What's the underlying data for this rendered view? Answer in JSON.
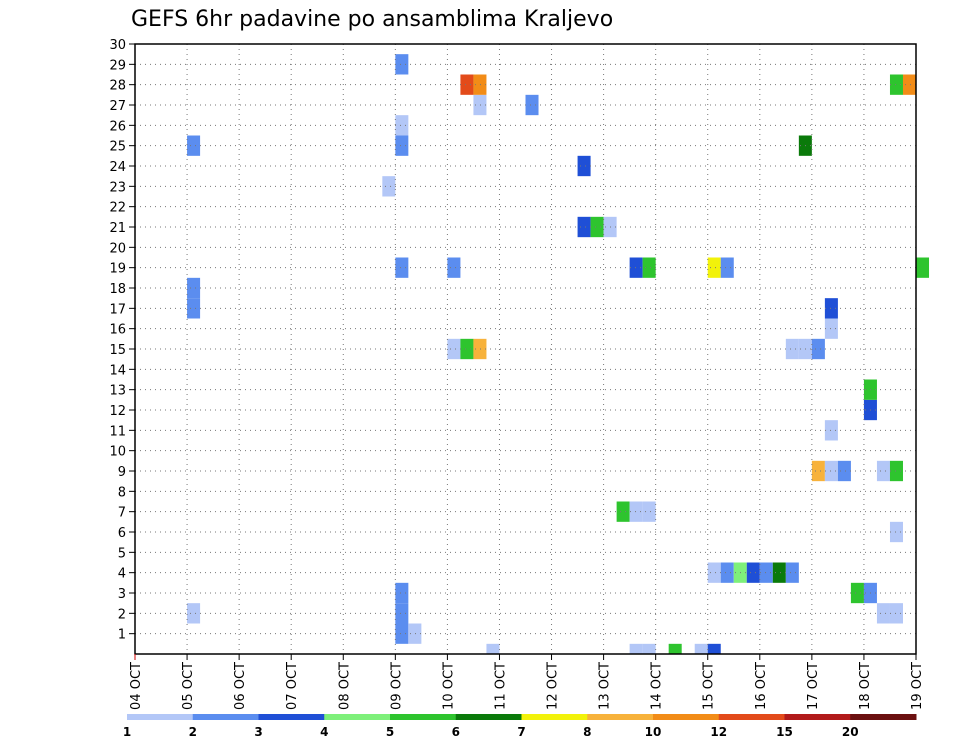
{
  "chart_data": {
    "type": "heatmap",
    "title": "GEFS 6hr padavine po ansamblima Kraljevo",
    "xlabel": "",
    "ylabel": "",
    "x_ticks": [
      "04 OCT",
      "05 OCT",
      "06 OCT",
      "07 OCT",
      "08 OCT",
      "09 OCT",
      "10 OCT",
      "11 OCT",
      "12 OCT",
      "13 OCT",
      "14 OCT",
      "15 OCT",
      "16 OCT",
      "17 OCT",
      "18 OCT",
      "19 OCT"
    ],
    "xlim_days": [
      0,
      15
    ],
    "y_ticks": [
      1,
      2,
      3,
      4,
      5,
      6,
      7,
      8,
      9,
      10,
      11,
      12,
      13,
      14,
      15,
      16,
      17,
      18,
      19,
      20,
      21,
      22,
      23,
      24,
      25,
      26,
      27,
      28,
      29,
      30
    ],
    "ylim": [
      0,
      30
    ],
    "grid": true,
    "cell_width_hours": 6,
    "colorbar": {
      "labels": [
        "1",
        "2",
        "3",
        "4",
        "5",
        "6",
        "7",
        "8",
        "10",
        "12",
        "15",
        "20"
      ],
      "colors": [
        "#b3c7f7",
        "#5b8def",
        "#1f4fd6",
        "#7ef07a",
        "#2ec42e",
        "#0a7a0a",
        "#f2f20a",
        "#f7b23b",
        "#f28c17",
        "#e34b1a",
        "#b21a1a",
        "#6b1010"
      ]
    },
    "cells": [
      {
        "member": 1,
        "day": 5.0,
        "mm": 2
      },
      {
        "member": 1,
        "day": 5.25,
        "mm": 1
      },
      {
        "member": 2,
        "day": 1.0,
        "mm": 1
      },
      {
        "member": 2,
        "day": 5.0,
        "mm": 2
      },
      {
        "member": 2,
        "day": 14.25,
        "mm": 1
      },
      {
        "member": 2,
        "day": 14.5,
        "mm": 1
      },
      {
        "member": 3,
        "day": 5.0,
        "mm": 2
      },
      {
        "member": 3,
        "day": 13.75,
        "mm": 5
      },
      {
        "member": 3,
        "day": 14.0,
        "mm": 2
      },
      {
        "member": 4,
        "day": 11.0,
        "mm": 1
      },
      {
        "member": 4,
        "day": 11.25,
        "mm": 2
      },
      {
        "member": 4,
        "day": 11.5,
        "mm": 4
      },
      {
        "member": 4,
        "day": 11.75,
        "mm": 3
      },
      {
        "member": 4,
        "day": 12.0,
        "mm": 2
      },
      {
        "member": 4,
        "day": 12.25,
        "mm": 6
      },
      {
        "member": 4,
        "day": 12.5,
        "mm": 2
      },
      {
        "member": 6,
        "day": 14.5,
        "mm": 1
      },
      {
        "member": 7,
        "day": 9.25,
        "mm": 5
      },
      {
        "member": 7,
        "day": 9.5,
        "mm": 1
      },
      {
        "member": 7,
        "day": 9.75,
        "mm": 1
      },
      {
        "member": 9,
        "day": 13.0,
        "mm": 8
      },
      {
        "member": 9,
        "day": 13.25,
        "mm": 1
      },
      {
        "member": 9,
        "day": 13.5,
        "mm": 2
      },
      {
        "member": 9,
        "day": 14.25,
        "mm": 1
      },
      {
        "member": 9,
        "day": 14.5,
        "mm": 5
      },
      {
        "member": 11,
        "day": 13.25,
        "mm": 1
      },
      {
        "member": 12,
        "day": 14.0,
        "mm": 3
      },
      {
        "member": 13,
        "day": 14.0,
        "mm": 5
      },
      {
        "member": 15,
        "day": 6.0,
        "mm": 1
      },
      {
        "member": 15,
        "day": 6.25,
        "mm": 5
      },
      {
        "member": 15,
        "day": 6.5,
        "mm": 8
      },
      {
        "member": 15,
        "day": 12.5,
        "mm": 1
      },
      {
        "member": 15,
        "day": 12.75,
        "mm": 1
      },
      {
        "member": 15,
        "day": 13.0,
        "mm": 2
      },
      {
        "member": 16,
        "day": 13.25,
        "mm": 1
      },
      {
        "member": 17,
        "day": 1.0,
        "mm": 2
      },
      {
        "member": 17,
        "day": 13.25,
        "mm": 3
      },
      {
        "member": 18,
        "day": 1.0,
        "mm": 2
      },
      {
        "member": 19,
        "day": 5.0,
        "mm": 2
      },
      {
        "member": 19,
        "day": 6.0,
        "mm": 2
      },
      {
        "member": 19,
        "day": 9.5,
        "mm": 3
      },
      {
        "member": 19,
        "day": 9.75,
        "mm": 5
      },
      {
        "member": 19,
        "day": 11.0,
        "mm": 7
      },
      {
        "member": 19,
        "day": 11.25,
        "mm": 2
      },
      {
        "member": 19,
        "day": 15.0,
        "mm": 5
      },
      {
        "member": 21,
        "day": 8.5,
        "mm": 3
      },
      {
        "member": 21,
        "day": 8.75,
        "mm": 5
      },
      {
        "member": 21,
        "day": 9.0,
        "mm": 1
      },
      {
        "member": 23,
        "day": 4.75,
        "mm": 1
      },
      {
        "member": 24,
        "day": 8.5,
        "mm": 3
      },
      {
        "member": 25,
        "day": 1.0,
        "mm": 2
      },
      {
        "member": 25,
        "day": 5.0,
        "mm": 2
      },
      {
        "member": 25,
        "day": 12.75,
        "mm": 6
      },
      {
        "member": 26,
        "day": 5.0,
        "mm": 1
      },
      {
        "member": 27,
        "day": 6.5,
        "mm": 1
      },
      {
        "member": 27,
        "day": 7.5,
        "mm": 2
      },
      {
        "member": 28,
        "day": 6.25,
        "mm": 12
      },
      {
        "member": 28,
        "day": 6.5,
        "mm": 10
      },
      {
        "member": 28,
        "day": 14.5,
        "mm": 5
      },
      {
        "member": 28,
        "day": 14.75,
        "mm": 10
      },
      {
        "member": 29,
        "day": 5.0,
        "mm": 2
      },
      {
        "member": 0,
        "day": 6.75,
        "mm": 1
      },
      {
        "member": 0,
        "day": 9.5,
        "mm": 1
      },
      {
        "member": 0,
        "day": 9.75,
        "mm": 1
      },
      {
        "member": 0,
        "day": 10.25,
        "mm": 5
      },
      {
        "member": 0,
        "day": 10.75,
        "mm": 1
      },
      {
        "member": 0,
        "day": 11.0,
        "mm": 3
      }
    ]
  }
}
